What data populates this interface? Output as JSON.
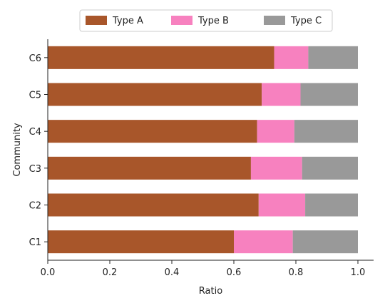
{
  "chart_data": {
    "type": "bar",
    "orientation": "horizontal",
    "stacked": true,
    "categories": [
      "C1",
      "C2",
      "C3",
      "C4",
      "C5",
      "C6"
    ],
    "series": [
      {
        "name": "Type A",
        "color": "#a8562a",
        "values": [
          0.6,
          0.68,
          0.655,
          0.675,
          0.69,
          0.73
        ]
      },
      {
        "name": "Type B",
        "color": "#f781bf",
        "values": [
          0.19,
          0.15,
          0.165,
          0.12,
          0.125,
          0.11
        ]
      },
      {
        "name": "Type C",
        "color": "#999999",
        "values": [
          0.21,
          0.17,
          0.18,
          0.205,
          0.185,
          0.16
        ]
      }
    ],
    "xlabel": "Ratio",
    "ylabel": "Community",
    "xlim": [
      0.0,
      1.05
    ],
    "xticks": [
      "0.0",
      "0.2",
      "0.4",
      "0.6",
      "0.8",
      "1.0"
    ],
    "grid": false,
    "legend_position": "top-center"
  }
}
